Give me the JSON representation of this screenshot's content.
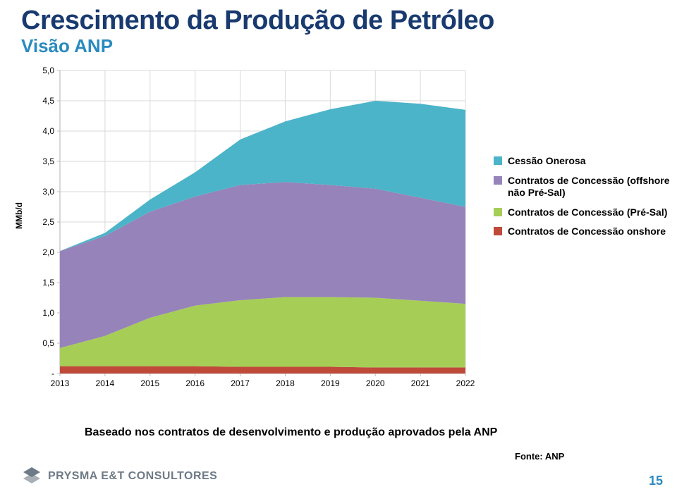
{
  "title": {
    "text": "Crescimento da Produção de Petróleo",
    "color": "#193a6f",
    "fontsize": 38
  },
  "subtitle": {
    "text": "Visão ANP",
    "color": "#2a8abf",
    "fontsize": 26
  },
  "legend": {
    "items": [
      {
        "label": "Cessão Onerosa",
        "color": "#4bb4c9"
      },
      {
        "label": "Contratos de Concessão (offshore não Pré-Sal)",
        "color": "#9683b9"
      },
      {
        "label": "Contratos de Concessão (Pré-Sal)",
        "color": "#a6ce57"
      },
      {
        "label": "Contratos de Concessão onshore",
        "color": "#c04a3a"
      }
    ],
    "fontsize": 14
  },
  "footnote": {
    "text": "Baseado nos contratos de desenvolvimento e produção aprovados pela ANP"
  },
  "source": {
    "text": "Fonte: ANP"
  },
  "page_number": {
    "text": "15",
    "color": "#2a8abf"
  },
  "brand": {
    "text": "PRYSMA E&T CONSULTORES",
    "color": "#6e7a86",
    "icon_color": "#6e7a86"
  },
  "chart": {
    "type": "area",
    "ylabel": "MMb/d",
    "label_fontsize": 12,
    "xlim": [
      2013,
      2022
    ],
    "ylim": [
      0,
      5.0
    ],
    "ytick_step": 0.5,
    "xtick_step": 1,
    "yticks": [
      "-",
      "0,5",
      "1,0",
      "1,5",
      "2,0",
      "2,5",
      "3,0",
      "3,5",
      "4,0",
      "4,5",
      "5,0"
    ],
    "xticks": [
      "2013",
      "2014",
      "2015",
      "2016",
      "2017",
      "2018",
      "2019",
      "2020",
      "2021",
      "2022"
    ],
    "tick_fontsize": 12,
    "background_color": "#ffffff",
    "grid_color": "#d9d9d9",
    "axis_color": "#bfbfbf",
    "series": [
      {
        "name": "Contratos de Concessão onshore",
        "color": "#c04a3a",
        "values": [
          0.12,
          0.12,
          0.12,
          0.12,
          0.11,
          0.11,
          0.11,
          0.1,
          0.1,
          0.1
        ]
      },
      {
        "name": "Contratos de Concessão (Pré-Sal)",
        "color": "#a6ce57",
        "values": [
          0.3,
          0.5,
          0.8,
          1.0,
          1.1,
          1.15,
          1.15,
          1.15,
          1.1,
          1.05
        ]
      },
      {
        "name": "Contratos de Concessão (offshore não Pré-Sal)",
        "color": "#9683b9",
        "values": [
          1.6,
          1.65,
          1.75,
          1.8,
          1.9,
          1.9,
          1.85,
          1.8,
          1.7,
          1.6
        ]
      },
      {
        "name": "Cessão Onerosa",
        "color": "#4bb4c9",
        "values": [
          0.0,
          0.05,
          0.2,
          0.4,
          0.75,
          1.0,
          1.25,
          1.45,
          1.55,
          1.6
        ]
      }
    ]
  }
}
